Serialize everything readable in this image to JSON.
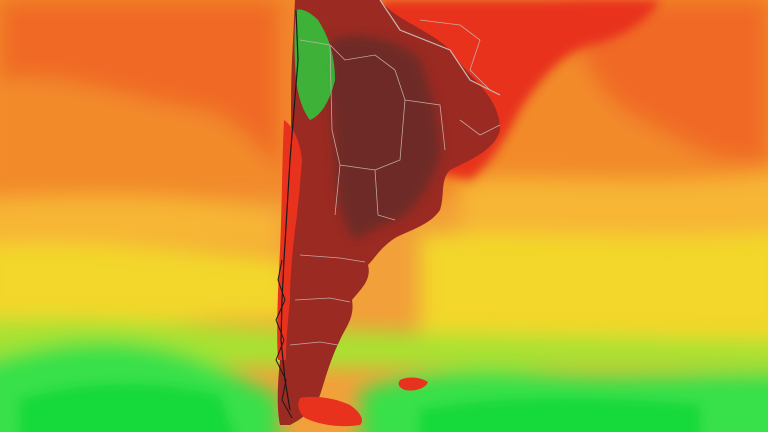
{
  "map": {
    "palette": {
      "green_deep": "#17d93a",
      "green": "#38e04a",
      "green_yellow": "#a8e233",
      "yellow": "#f3d72a",
      "amber": "#f7b636",
      "orange": "#f28a2c",
      "orange_red": "#f06a28",
      "red": "#e8321e",
      "dark_red": "#9a2a22",
      "maroon": "#6e2a26",
      "andes_green": "#2ec93c",
      "border_line": "#c9b7b0",
      "coast_line": "#1a1a1a"
    },
    "legend": [],
    "layers": [
      "temperature-field",
      "country-borders",
      "province-borders",
      "coastline"
    ]
  }
}
